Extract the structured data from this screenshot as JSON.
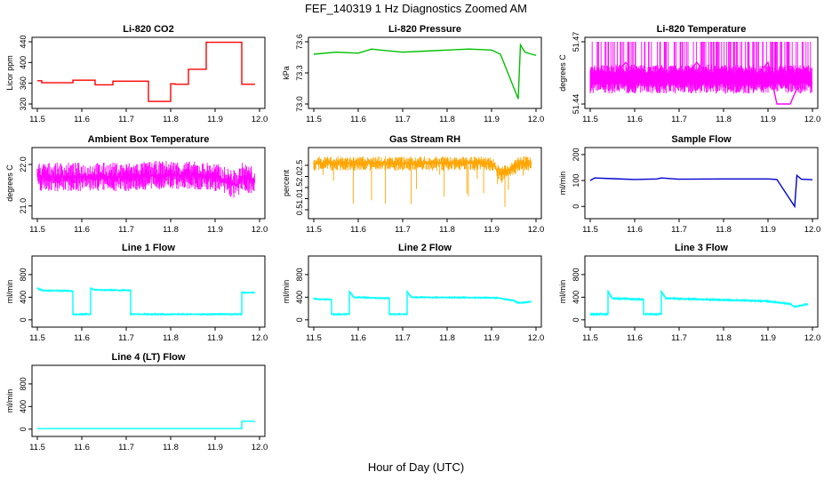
{
  "figure": {
    "title": "FEF_140319  1 Hz Diagnostics Zoomed AM",
    "xlabel": "Hour of Day (UTC)"
  },
  "chart_data": [
    {
      "type": "line",
      "title": "Li-820 CO2",
      "ylabel": "Licor ppm",
      "color": "#ff0000",
      "xlim": [
        11.5,
        12.0
      ],
      "ylim": [
        320,
        440
      ],
      "yticks": [
        "320",
        "360",
        "400",
        "440"
      ],
      "xticks": [
        "11.5",
        "11.6",
        "11.7",
        "11.8",
        "11.9",
        "12.0"
      ],
      "x": [
        11.5,
        11.51,
        11.51,
        11.58,
        11.58,
        11.63,
        11.63,
        11.67,
        11.67,
        11.75,
        11.75,
        11.76,
        11.76,
        11.8,
        11.8,
        11.81,
        11.81,
        11.84,
        11.84,
        11.88,
        11.88,
        11.96,
        11.96,
        11.99
      ],
      "y": [
        365,
        365,
        361,
        361,
        366,
        366,
        357,
        357,
        364,
        364,
        325,
        325,
        325,
        325,
        359,
        359,
        358,
        358,
        387,
        387,
        439,
        439,
        358,
        358
      ]
    },
    {
      "type": "line",
      "title": "Li-820 Pressure",
      "ylabel": "kPa",
      "color": "#00c000",
      "xlim": [
        11.5,
        12.0
      ],
      "ylim": [
        73.0,
        73.6
      ],
      "yticks": [
        "73.0",
        "73.3",
        "73.6"
      ],
      "xticks": [
        "11.5",
        "11.6",
        "11.7",
        "11.8",
        "11.9",
        "12.0"
      ],
      "x": [
        11.5,
        11.55,
        11.6,
        11.63,
        11.65,
        11.7,
        11.75,
        11.8,
        11.85,
        11.9,
        11.92,
        11.96,
        11.965,
        11.975,
        11.99,
        12.0
      ],
      "y": [
        73.48,
        73.5,
        73.49,
        73.53,
        73.52,
        73.5,
        73.51,
        73.52,
        73.53,
        73.52,
        73.48,
        73.05,
        73.57,
        73.5,
        73.48,
        73.47
      ]
    },
    {
      "type": "line",
      "title": "Li-820 Temperature",
      "ylabel": "degrees C",
      "color": "#ff00ff",
      "xlim": [
        11.5,
        12.0
      ],
      "ylim": [
        51.44,
        51.47
      ],
      "yticks": [
        "51.44",
        "51.47"
      ],
      "xticks": [
        "11.5",
        "11.6",
        "11.7",
        "11.8",
        "11.9",
        "12.0"
      ],
      "x": [
        11.5,
        11.54,
        11.58,
        11.62,
        11.66,
        11.7,
        11.74,
        11.78,
        11.82,
        11.86,
        11.9,
        11.92,
        11.95,
        11.98,
        12.0
      ],
      "y": [
        51.455,
        51.45,
        51.46,
        51.45,
        51.455,
        51.45,
        51.46,
        51.45,
        51.455,
        51.45,
        51.46,
        51.44,
        51.44,
        51.455,
        51.45
      ]
    },
    {
      "type": "line",
      "title": "Ambient Box Temperature",
      "ylabel": "degrees C",
      "color": "#ff00ff",
      "xlim": [
        11.5,
        12.0
      ],
      "ylim": [
        20.8,
        22.3
      ],
      "yticks": [
        "21.0",
        "22.0"
      ],
      "xticks": [
        "11.5",
        "11.6",
        "11.7",
        "11.8",
        "11.9",
        "12.0"
      ],
      "x": [
        11.5,
        11.6,
        11.7,
        11.8,
        11.9,
        11.92,
        11.95,
        11.96,
        11.99
      ],
      "y": [
        21.7,
        21.7,
        21.7,
        21.75,
        21.7,
        21.6,
        21.5,
        21.7,
        21.6
      ]
    },
    {
      "type": "line",
      "title": "Gas Stream RH",
      "ylabel": "percent",
      "color": "#ffa500",
      "xlim": [
        11.5,
        12.0
      ],
      "ylim": [
        0.3,
        3.1
      ],
      "yticks": [
        "0.5",
        "1.0",
        "1.5",
        "2.0",
        "2.5"
      ],
      "xticks": [
        "11.5",
        "11.6",
        "11.7",
        "11.8",
        "11.9",
        "12.0"
      ],
      "x": [
        11.5,
        11.6,
        11.7,
        11.8,
        11.9,
        11.92,
        11.95,
        11.96,
        11.99
      ],
      "y": [
        2.6,
        2.6,
        2.6,
        2.6,
        2.6,
        2.1,
        2.4,
        2.6,
        2.6
      ]
    },
    {
      "type": "line",
      "title": "Sample Flow",
      "ylabel": "ml/min",
      "color": "#0000cc",
      "xlim": [
        11.5,
        12.0
      ],
      "ylim": [
        -30,
        210
      ],
      "yticks": [
        "0",
        "100",
        "200"
      ],
      "xticks": [
        "11.5",
        "11.6",
        "11.7",
        "11.8",
        "11.9",
        "12.0"
      ],
      "x": [
        11.5,
        11.51,
        11.55,
        11.6,
        11.65,
        11.66,
        11.7,
        11.8,
        11.9,
        11.92,
        11.96,
        11.965,
        11.975,
        11.99,
        12.0
      ],
      "y": [
        100,
        110,
        107,
        104,
        106,
        110,
        105,
        106,
        106,
        104,
        0,
        120,
        105,
        104,
        103
      ]
    },
    {
      "type": "line",
      "title": "Line 1 Flow",
      "ylabel": "ml/min",
      "color": "#00ffff",
      "xlim": [
        11.5,
        12.0
      ],
      "ylim": [
        -50,
        1050
      ],
      "yticks": [
        "0",
        "400",
        "800"
      ],
      "xticks": [
        "11.5",
        "11.6",
        "11.7",
        "11.8",
        "11.9",
        "12.0"
      ],
      "x": [
        11.5,
        11.51,
        11.58,
        11.58,
        11.62,
        11.62,
        11.63,
        11.71,
        11.71,
        11.96,
        11.96,
        11.99
      ],
      "y": [
        560,
        520,
        510,
        100,
        100,
        560,
        530,
        520,
        100,
        100,
        480,
        480
      ]
    },
    {
      "type": "line",
      "title": "Line 2 Flow",
      "ylabel": "ml/min",
      "color": "#00ffff",
      "xlim": [
        11.5,
        12.0
      ],
      "ylim": [
        -50,
        1050
      ],
      "yticks": [
        "0",
        "400",
        "800"
      ],
      "xticks": [
        "11.5",
        "11.6",
        "11.7",
        "11.8",
        "11.9",
        "12.0"
      ],
      "x": [
        11.5,
        11.54,
        11.54,
        11.58,
        11.58,
        11.59,
        11.67,
        11.67,
        11.71,
        11.71,
        11.72,
        11.9,
        11.92,
        11.95,
        11.96,
        11.99
      ],
      "y": [
        370,
        360,
        100,
        100,
        500,
        400,
        380,
        100,
        100,
        500,
        400,
        390,
        380,
        340,
        300,
        320
      ]
    },
    {
      "type": "line",
      "title": "Line 3 Flow",
      "ylabel": "ml/min",
      "color": "#00ffff",
      "xlim": [
        11.5,
        12.0
      ],
      "ylim": [
        -50,
        1050
      ],
      "yticks": [
        "0",
        "400",
        "800"
      ],
      "xticks": [
        "11.5",
        "11.6",
        "11.7",
        "11.8",
        "11.9",
        "12.0"
      ],
      "x": [
        11.5,
        11.54,
        11.54,
        11.55,
        11.62,
        11.62,
        11.66,
        11.66,
        11.67,
        11.9,
        11.92,
        11.95,
        11.96,
        11.99
      ],
      "y": [
        100,
        100,
        500,
        380,
        360,
        100,
        100,
        500,
        380,
        330,
        310,
        280,
        230,
        280
      ]
    },
    {
      "type": "line",
      "title": "Line 4 (LT) Flow",
      "ylabel": "ml/min",
      "color": "#00ffff",
      "xlim": [
        11.5,
        12.0
      ],
      "ylim": [
        -50,
        1050
      ],
      "yticks": [
        "0",
        "400",
        "800"
      ],
      "xticks": [
        "11.5",
        "11.6",
        "11.7",
        "11.8",
        "11.9",
        "12.0"
      ],
      "x": [
        11.5,
        11.96,
        11.96,
        11.99
      ],
      "y": [
        10,
        10,
        140,
        140
      ]
    }
  ]
}
